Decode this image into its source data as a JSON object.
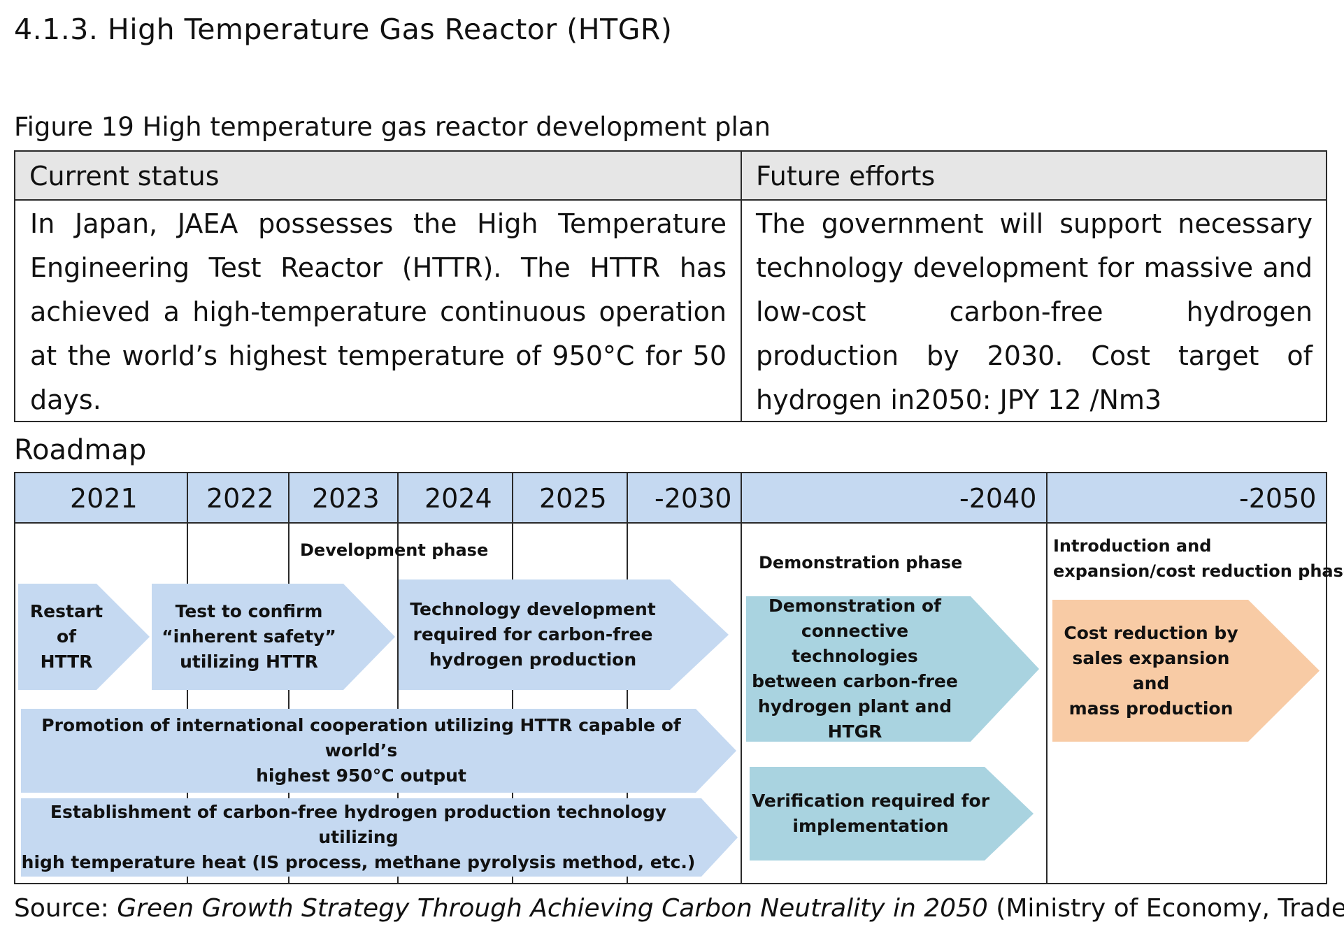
{
  "section_heading": "4.1.3. High Temperature Gas Reactor (HTGR)",
  "figure_caption": "Figure 19 High temperature gas reactor development plan",
  "status_table": {
    "current_header": "Current status",
    "future_header": "Future efforts",
    "current_text": "In Japan, JAEA possesses the High Temperature Engineering Test Reactor (HTTR). The HTTR has achieved a high-temperature continuous operation at the world’s highest temperature of 950°C for 50 days.",
    "future_text": "The government will support necessary technology development for massive and low-cost carbon-free hydrogen production by 2030. Cost target of hydrogen in2050: JPY 12 /Nm3"
  },
  "roadmap_label": "Roadmap",
  "roadmap": {
    "years": [
      "2021",
      "2022",
      "2023",
      "2024",
      "2025",
      "-2030",
      "-2040",
      "-2050"
    ],
    "phases": {
      "development": "Development phase",
      "demonstration": "Demonstration phase",
      "introduction_line1": "Introduction and",
      "introduction_line2": "expansion/cost reduction phase"
    },
    "arrows": {
      "restart": [
        "Restart",
        "of",
        "HTTR"
      ],
      "inherent_safety": [
        "Test to confirm",
        "“inherent safety”",
        "utilizing HTTR"
      ],
      "tech_dev": [
        "Technology development",
        "required for carbon-free",
        "hydrogen production"
      ],
      "intl_coop": [
        "Promotion of international cooperation utilizing HTTR capable of world’s",
        "highest 950°C output"
      ],
      "establishment": [
        "Establishment of carbon-free hydrogen production technology utilizing",
        "high temperature heat (IS process, methane pyrolysis method, etc.)"
      ],
      "demonstration": [
        "Demonstration of",
        "connective technologies",
        "between carbon-free",
        "hydrogen plant and",
        "HTGR"
      ],
      "verification": [
        "Verification required for",
        "implementation"
      ],
      "cost_reduction": [
        "Cost reduction by",
        "sales expansion and",
        "mass production"
      ]
    },
    "colors": {
      "band": "#c5d9f1",
      "blue_arrow": "#c5d9f1",
      "teal_arrow": "#a9d3e0",
      "peach_arrow": "#f8cba5"
    }
  },
  "source": {
    "prefix": "Source: ",
    "title": "Green Growth Strategy  Through Achieving  Carbon Neutrality in 2050",
    "suffix": " (Ministry of Economy, Trade and"
  }
}
